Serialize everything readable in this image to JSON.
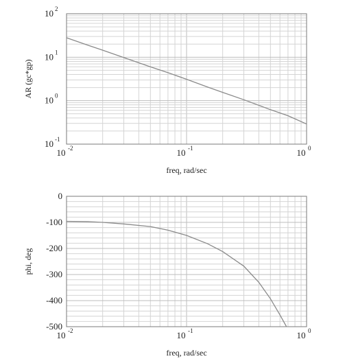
{
  "chart_data": [
    {
      "type": "line",
      "xscale": "log",
      "yscale": "log",
      "xlim": [
        0.01,
        1
      ],
      "ylim": [
        0.1,
        100
      ],
      "xlabel": "freq, rad/sec",
      "ylabel": "AR (gc*gp)",
      "grid": true,
      "x_ticks": [
        {
          "base": "10",
          "exp": "-2"
        },
        {
          "base": "10",
          "exp": "-1"
        },
        {
          "base": "10",
          "exp": "0"
        }
      ],
      "y_ticks": [
        {
          "base": "10",
          "exp": "-1"
        },
        {
          "base": "10",
          "exp": "0"
        },
        {
          "base": "10",
          "exp": "1"
        },
        {
          "base": "10",
          "exp": "2"
        }
      ],
      "series": [
        {
          "x": [
            0.01,
            0.015,
            0.02,
            0.03,
            0.05,
            0.07,
            0.1,
            0.15,
            0.2,
            0.3,
            0.5,
            0.7,
            1.0
          ],
          "y": [
            28,
            19,
            14.5,
            9.8,
            6.0,
            4.4,
            3.1,
            2.05,
            1.55,
            1.05,
            0.62,
            0.45,
            0.29
          ]
        }
      ]
    },
    {
      "type": "line",
      "xscale": "log",
      "yscale": "linear",
      "xlim": [
        0.01,
        1
      ],
      "ylim": [
        -500,
        0
      ],
      "xlabel": "freq, rad/sec",
      "ylabel": "phi, deg",
      "grid": true,
      "x_ticks": [
        {
          "base": "10",
          "exp": "-2"
        },
        {
          "base": "10",
          "exp": "-1"
        },
        {
          "base": "10",
          "exp": "0"
        }
      ],
      "y_ticks": [
        "0",
        "-100",
        "-200",
        "-300",
        "-400",
        "-500"
      ],
      "series": [
        {
          "x": [
            0.01,
            0.015,
            0.02,
            0.03,
            0.05,
            0.07,
            0.1,
            0.15,
            0.2,
            0.3,
            0.4,
            0.5,
            0.6,
            0.68
          ],
          "y": [
            -96,
            -97,
            -100,
            -106,
            -116,
            -130,
            -150,
            -182,
            -212,
            -268,
            -330,
            -393,
            -455,
            -500
          ]
        }
      ]
    }
  ]
}
